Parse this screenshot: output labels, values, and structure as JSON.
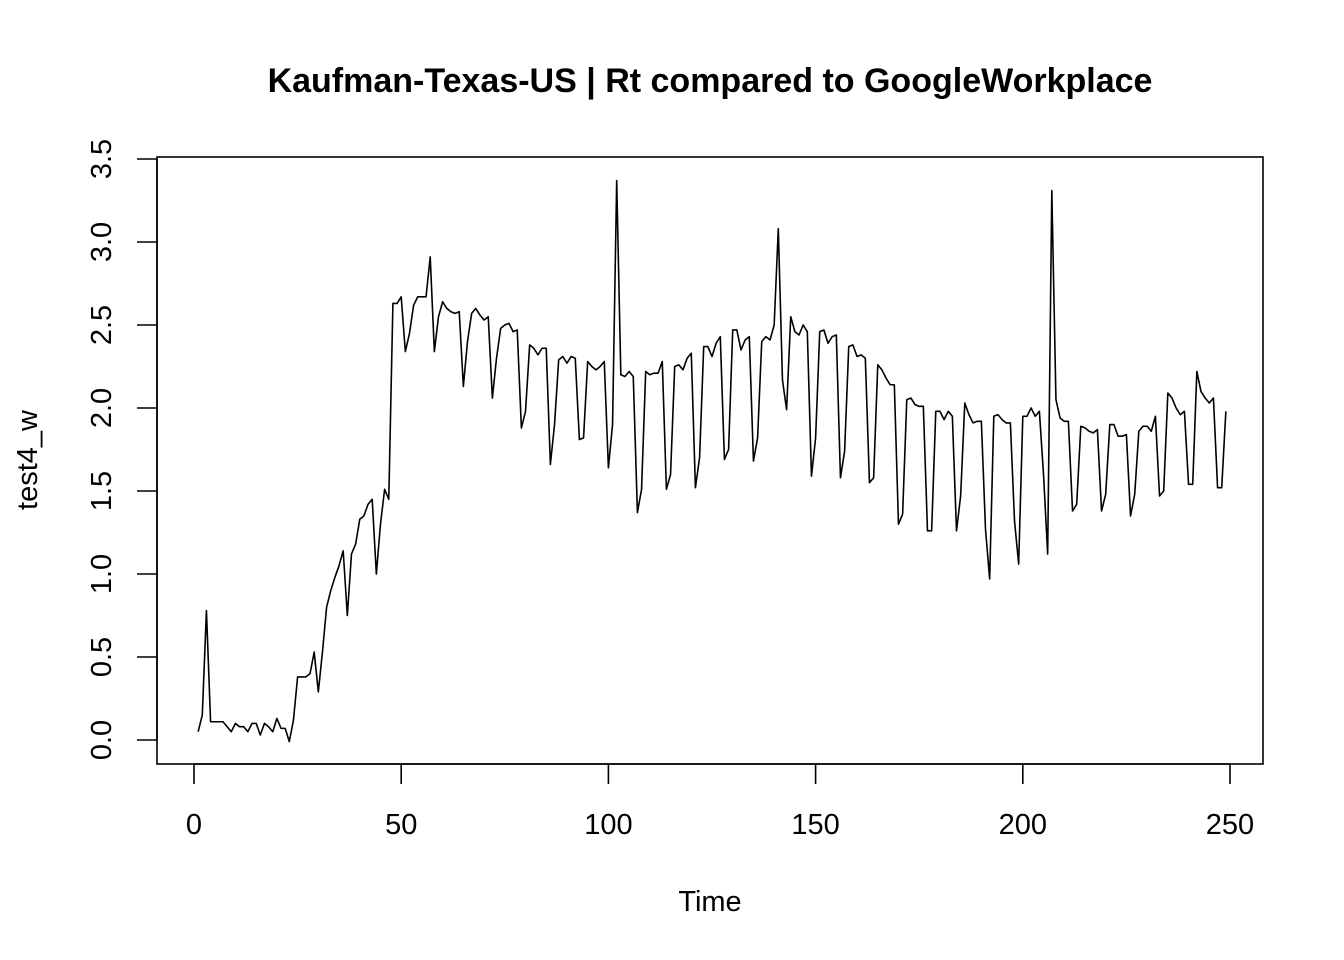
{
  "chart_data": {
    "type": "line",
    "title": "Kaufman-Texas-US | Rt compared to GoogleWorkplace",
    "xlabel": "Time",
    "ylabel": "test4_w",
    "xlim": [
      0,
      250
    ],
    "ylim": [
      0.0,
      3.5
    ],
    "x_ticks": [
      "0",
      "50",
      "100",
      "150",
      "200",
      "250"
    ],
    "y_ticks": [
      "0.0",
      "0.5",
      "1.0",
      "1.5",
      "2.0",
      "2.5",
      "3.0",
      "3.5"
    ],
    "grid": false,
    "legend": "none",
    "line_color": "#000000",
    "x_start": 1,
    "x_step": 1,
    "values": [
      0.05,
      0.15,
      0.78,
      0.11,
      0.11,
      0.11,
      0.11,
      0.08,
      0.05,
      0.1,
      0.08,
      0.08,
      0.05,
      0.1,
      0.1,
      0.03,
      0.1,
      0.08,
      0.05,
      0.13,
      0.07,
      0.07,
      -0.01,
      0.12,
      0.38,
      0.38,
      0.38,
      0.4,
      0.53,
      0.29,
      0.53,
      0.8,
      0.9,
      0.98,
      1.05,
      1.14,
      0.75,
      1.12,
      1.18,
      1.33,
      1.35,
      1.42,
      1.45,
      1.0,
      1.3,
      1.51,
      1.45,
      2.63,
      2.63,
      2.67,
      2.34,
      2.45,
      2.62,
      2.67,
      2.67,
      2.67,
      2.91,
      2.34,
      2.55,
      2.64,
      2.6,
      2.58,
      2.57,
      2.58,
      2.13,
      2.4,
      2.57,
      2.6,
      2.56,
      2.53,
      2.55,
      2.06,
      2.3,
      2.48,
      2.5,
      2.51,
      2.46,
      2.47,
      1.88,
      1.98,
      2.38,
      2.36,
      2.32,
      2.36,
      2.36,
      1.66,
      1.9,
      2.29,
      2.31,
      2.27,
      2.31,
      2.3,
      1.81,
      1.82,
      2.28,
      2.25,
      2.23,
      2.25,
      2.28,
      1.64,
      1.9,
      3.37,
      2.2,
      2.19,
      2.22,
      2.19,
      1.37,
      1.51,
      2.22,
      2.2,
      2.21,
      2.21,
      2.28,
      1.51,
      1.6,
      2.25,
      2.26,
      2.23,
      2.3,
      2.33,
      1.52,
      1.7,
      2.37,
      2.37,
      2.31,
      2.39,
      2.43,
      1.69,
      1.75,
      2.47,
      2.47,
      2.35,
      2.41,
      2.43,
      1.68,
      1.82,
      2.4,
      2.43,
      2.41,
      2.5,
      3.08,
      2.17,
      1.99,
      2.55,
      2.46,
      2.44,
      2.5,
      2.46,
      1.59,
      1.82,
      2.46,
      2.47,
      2.39,
      2.43,
      2.44,
      1.58,
      1.74,
      2.37,
      2.38,
      2.31,
      2.32,
      2.3,
      1.55,
      1.58,
      2.26,
      2.23,
      2.18,
      2.14,
      2.14,
      1.3,
      1.36,
      2.05,
      2.06,
      2.02,
      2.01,
      2.01,
      1.26,
      1.26,
      1.98,
      1.98,
      1.93,
      1.98,
      1.95,
      1.26,
      1.47,
      2.03,
      1.96,
      1.91,
      1.92,
      1.92,
      1.27,
      0.97,
      1.95,
      1.96,
      1.93,
      1.91,
      1.91,
      1.32,
      1.06,
      1.95,
      1.95,
      2.0,
      1.95,
      1.98,
      1.6,
      1.12,
      3.31,
      2.05,
      1.94,
      1.92,
      1.92,
      1.38,
      1.42,
      1.89,
      1.88,
      1.86,
      1.85,
      1.87,
      1.38,
      1.48,
      1.9,
      1.9,
      1.83,
      1.83,
      1.84,
      1.35,
      1.48,
      1.86,
      1.89,
      1.89,
      1.86,
      1.95,
      1.47,
      1.5,
      2.09,
      2.06,
      2.0,
      1.96,
      1.98,
      1.54,
      1.54,
      2.22,
      2.1,
      2.06,
      2.03,
      2.06,
      1.52,
      1.52,
      1.98
    ]
  }
}
